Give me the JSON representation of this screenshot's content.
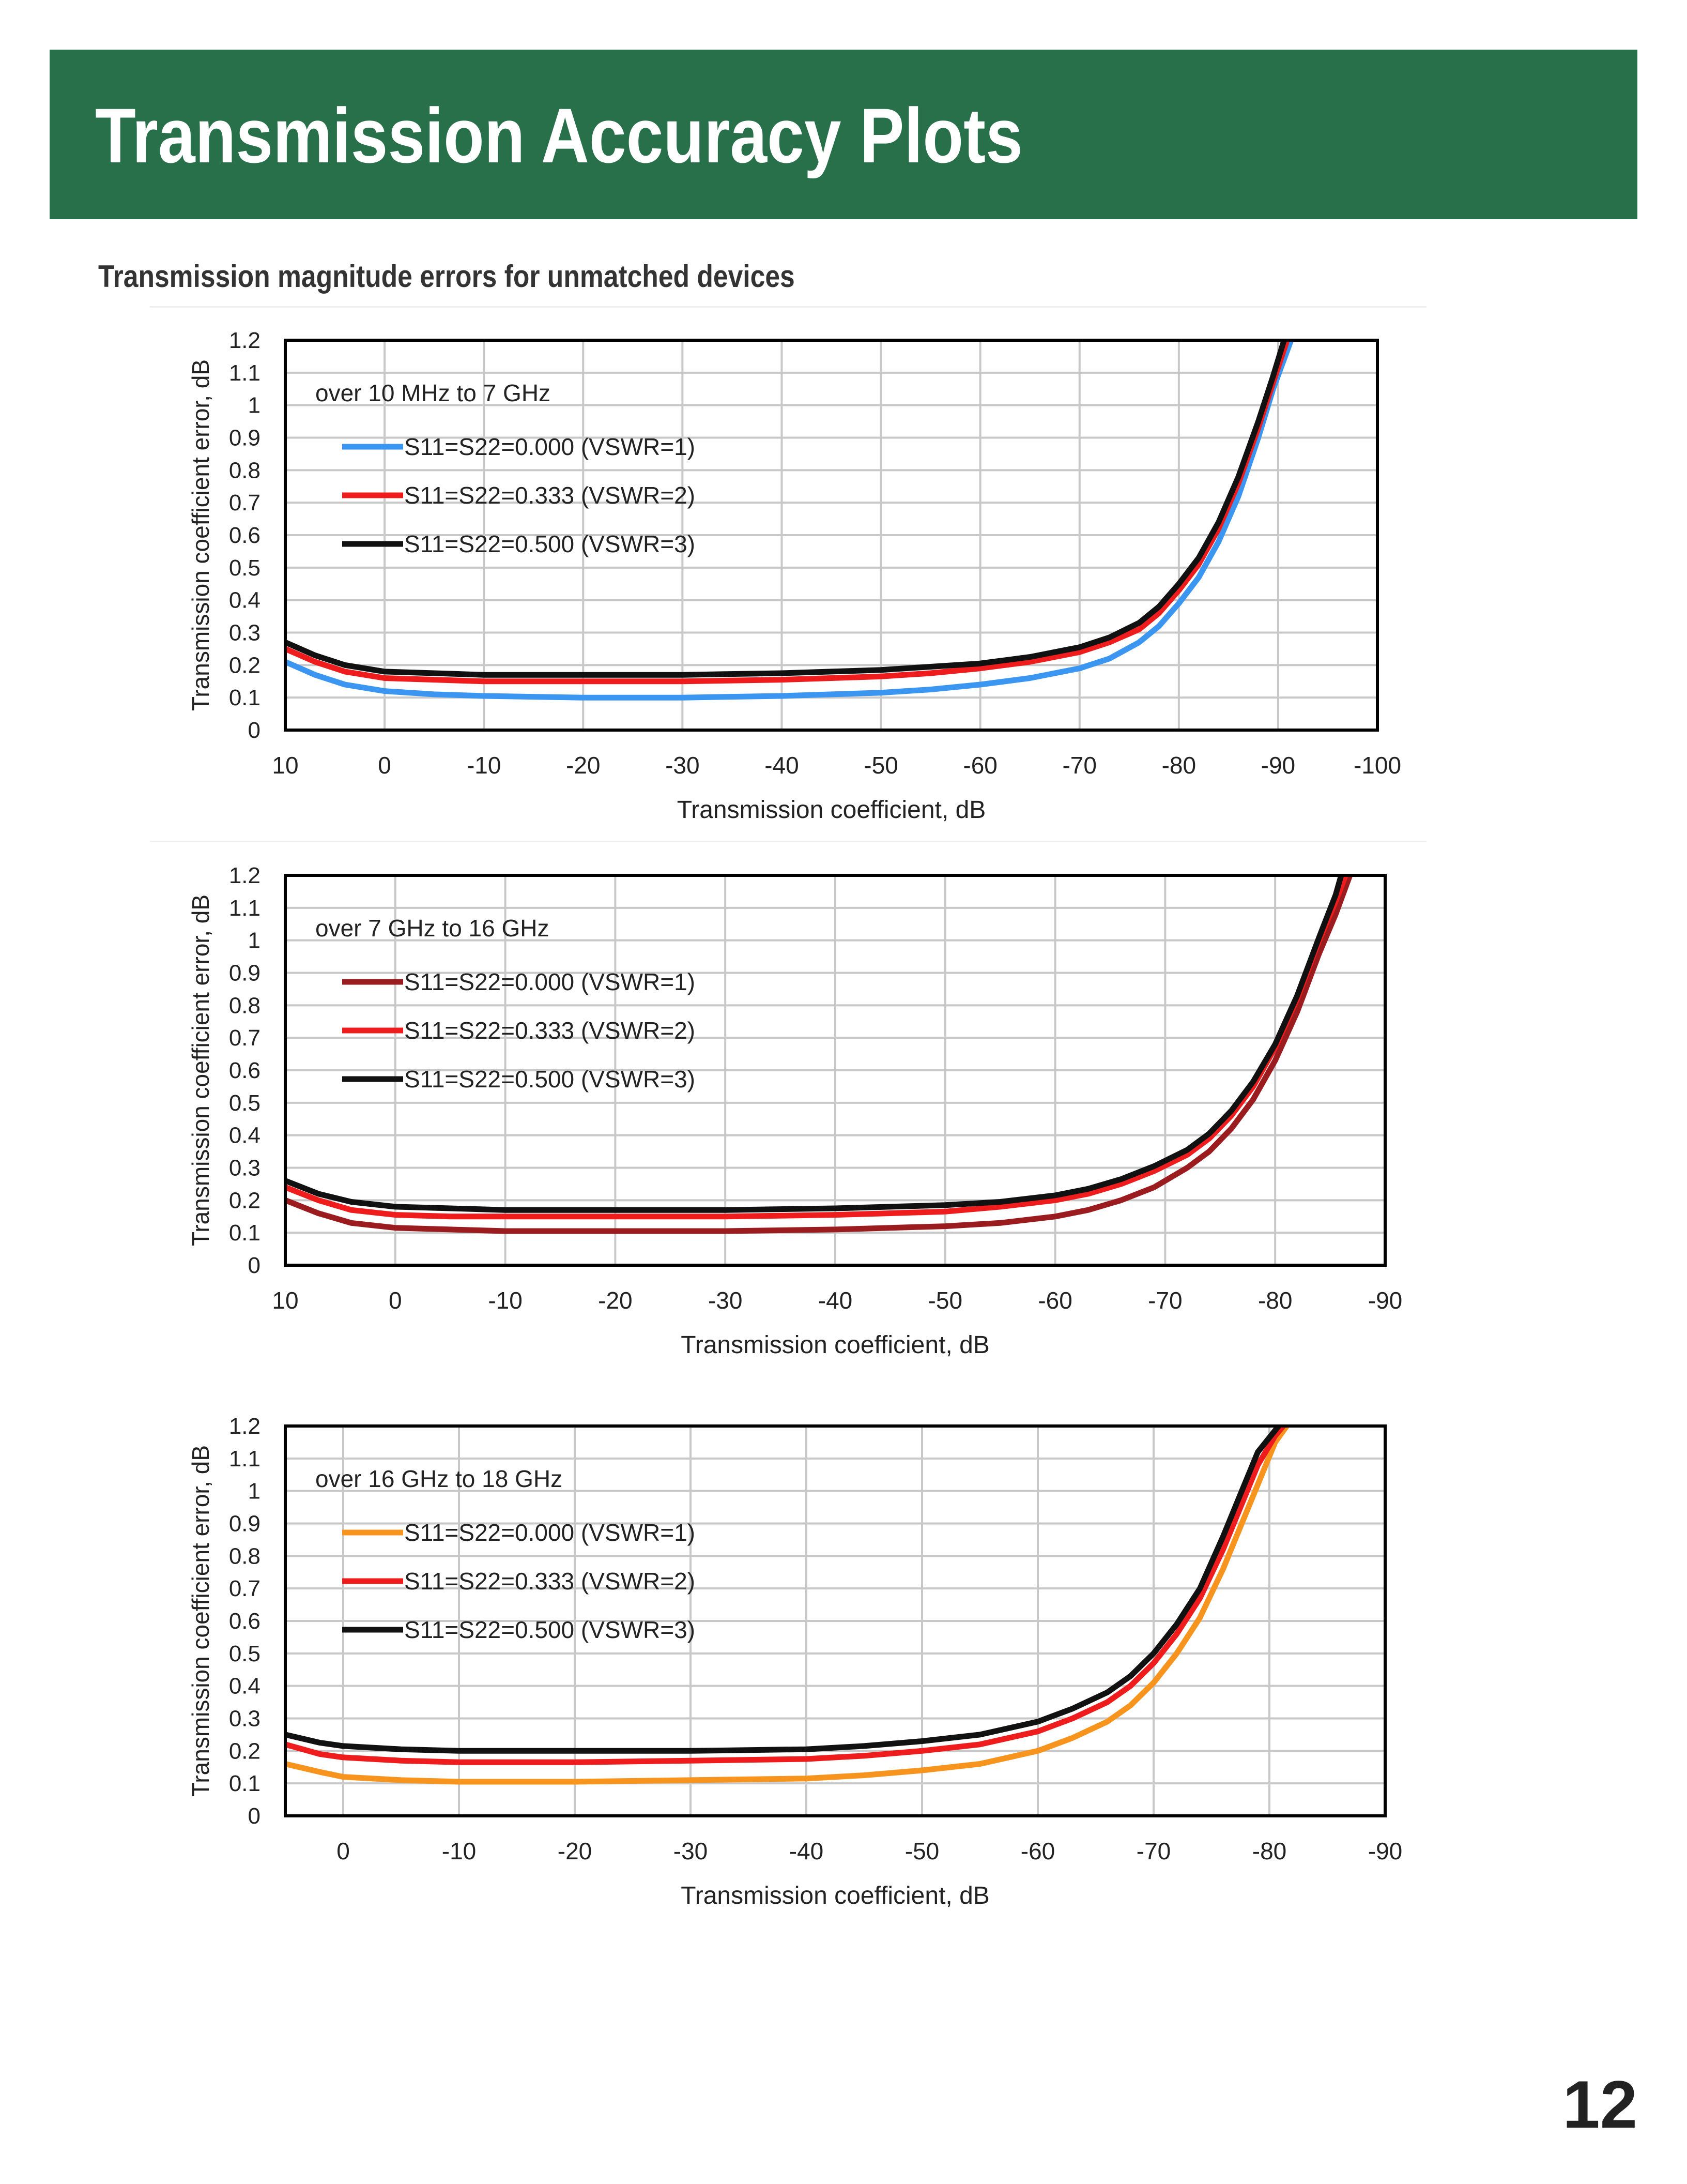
{
  "page": {
    "title": "Transmission Accuracy Plots",
    "subtitle": "Transmission magnitude errors for unmatched devices",
    "page_number": "12"
  },
  "chart_data": [
    {
      "type": "line",
      "annotation": "over 10 MHz to 7 GHz",
      "xlabel": "Transmission coefficient, dB",
      "ylabel": "Transmission coefficient error, dB",
      "xlim": [
        10,
        -100
      ],
      "ylim": [
        0,
        1.2
      ],
      "x_ticks": [
        10,
        0,
        -10,
        -20,
        -30,
        -40,
        -50,
        -60,
        -70,
        -80,
        -90,
        -100
      ],
      "x_tick_labels": [
        "10",
        "0",
        "-10",
        "-20",
        "-30",
        "-40",
        "-50",
        "-60",
        "-70",
        "-80",
        "-90",
        "-100"
      ],
      "y_ticks": [
        0,
        0.1,
        0.2,
        0.3,
        0.4,
        0.5,
        0.6,
        0.7,
        0.8,
        0.9,
        1,
        1.1,
        1.2
      ],
      "y_tick_labels": [
        "0",
        "0.1",
        "0.2",
        "0.3",
        "0.4",
        "0.5",
        "0.6",
        "0.7",
        "0.8",
        "0.9",
        "1",
        "1.1",
        "1.2"
      ],
      "grid": true,
      "legend_position": "top-left",
      "series": [
        {
          "name": "S11=S22=0.000 (VSWR=1)",
          "color": "#3a96f0",
          "x": [
            10,
            7,
            4,
            0,
            -5,
            -10,
            -20,
            -30,
            -40,
            -45,
            -50,
            -55,
            -60,
            -65,
            -70,
            -73,
            -76,
            -78,
            -80,
            -82,
            -84,
            -86,
            -88,
            -89.5,
            -91.3
          ],
          "y": [
            0.21,
            0.17,
            0.14,
            0.12,
            0.11,
            0.105,
            0.1,
            0.1,
            0.105,
            0.11,
            0.115,
            0.125,
            0.14,
            0.16,
            0.19,
            0.22,
            0.27,
            0.32,
            0.39,
            0.47,
            0.58,
            0.72,
            0.9,
            1.05,
            1.2
          ]
        },
        {
          "name": "S11=S22=0.333 (VSWR=2)",
          "color": "#ee1c1c",
          "x": [
            10,
            7,
            4,
            0,
            -5,
            -10,
            -20,
            -30,
            -40,
            -45,
            -50,
            -55,
            -60,
            -65,
            -70,
            -73,
            -76,
            -78,
            -80,
            -82,
            -84,
            -86,
            -88,
            -89.5,
            -90.9
          ],
          "y": [
            0.25,
            0.21,
            0.18,
            0.16,
            0.155,
            0.15,
            0.15,
            0.15,
            0.155,
            0.16,
            0.165,
            0.175,
            0.19,
            0.21,
            0.24,
            0.27,
            0.31,
            0.36,
            0.43,
            0.51,
            0.62,
            0.76,
            0.93,
            1.07,
            1.2
          ]
        },
        {
          "name": "S11=S22=0.500 (VSWR=3)",
          "color": "#111111",
          "x": [
            10,
            7,
            4,
            0,
            -5,
            -10,
            -20,
            -30,
            -40,
            -45,
            -50,
            -55,
            -60,
            -65,
            -70,
            -73,
            -76,
            -78,
            -80,
            -82,
            -84,
            -86,
            -88,
            -89.5,
            -90.6
          ],
          "y": [
            0.27,
            0.23,
            0.2,
            0.18,
            0.175,
            0.17,
            0.17,
            0.17,
            0.175,
            0.18,
            0.185,
            0.195,
            0.205,
            0.225,
            0.255,
            0.285,
            0.33,
            0.38,
            0.45,
            0.53,
            0.64,
            0.78,
            0.95,
            1.09,
            1.2
          ]
        }
      ]
    },
    {
      "type": "line",
      "annotation": "over 7 GHz to 16 GHz",
      "xlabel": "Transmission coefficient, dB",
      "ylabel": "Transmission coefficient error, dB",
      "xlim": [
        10,
        -90
      ],
      "ylim": [
        0,
        1.2
      ],
      "x_ticks": [
        10,
        0,
        -10,
        -20,
        -30,
        -40,
        -50,
        -60,
        -70,
        -80,
        -90
      ],
      "x_tick_labels": [
        "10",
        "0",
        "-10",
        "-20",
        "-30",
        "-40",
        "-50",
        "-60",
        "-70",
        "-80",
        "-90"
      ],
      "y_ticks": [
        0,
        0.1,
        0.2,
        0.3,
        0.4,
        0.5,
        0.6,
        0.7,
        0.8,
        0.9,
        1,
        1.1,
        1.2
      ],
      "y_tick_labels": [
        "0",
        "0.1",
        "0.2",
        "0.3",
        "0.4",
        "0.5",
        "0.6",
        "0.7",
        "0.8",
        "0.9",
        "1",
        "1.1",
        "1.2"
      ],
      "grid": true,
      "legend_position": "top-left",
      "series": [
        {
          "name": "S11=S22=0.000 (VSWR=1)",
          "color": "#9b1c1f",
          "x": [
            10,
            7,
            4,
            0,
            -5,
            -10,
            -20,
            -30,
            -40,
            -45,
            -50,
            -55,
            -60,
            -63,
            -66,
            -69,
            -72,
            -74,
            -76,
            -78,
            -80,
            -82,
            -84,
            -85.5,
            -86.8
          ],
          "y": [
            0.2,
            0.16,
            0.13,
            0.115,
            0.11,
            0.105,
            0.105,
            0.105,
            0.11,
            0.115,
            0.12,
            0.13,
            0.15,
            0.17,
            0.2,
            0.24,
            0.3,
            0.35,
            0.42,
            0.51,
            0.63,
            0.78,
            0.96,
            1.08,
            1.2
          ]
        },
        {
          "name": "S11=S22=0.333 (VSWR=2)",
          "color": "#ee1c1c",
          "x": [
            10,
            7,
            4,
            0,
            -5,
            -10,
            -20,
            -30,
            -40,
            -45,
            -50,
            -55,
            -60,
            -63,
            -66,
            -69,
            -72,
            -74,
            -76,
            -78,
            -80,
            -82,
            -84,
            -85.5,
            -86.4
          ],
          "y": [
            0.24,
            0.2,
            0.17,
            0.155,
            0.15,
            0.15,
            0.15,
            0.15,
            0.155,
            0.16,
            0.165,
            0.18,
            0.2,
            0.22,
            0.25,
            0.29,
            0.34,
            0.39,
            0.46,
            0.55,
            0.67,
            0.82,
            1.0,
            1.12,
            1.2
          ]
        },
        {
          "name": "S11=S22=0.500 (VSWR=3)",
          "color": "#111111",
          "x": [
            10,
            7,
            4,
            0,
            -5,
            -10,
            -20,
            -30,
            -40,
            -45,
            -50,
            -55,
            -60,
            -63,
            -66,
            -69,
            -72,
            -74,
            -76,
            -78,
            -80,
            -82,
            -84,
            -85.5,
            -86.0
          ],
          "y": [
            0.26,
            0.22,
            0.195,
            0.18,
            0.175,
            0.17,
            0.17,
            0.17,
            0.175,
            0.18,
            0.185,
            0.195,
            0.215,
            0.235,
            0.265,
            0.305,
            0.355,
            0.405,
            0.475,
            0.565,
            0.68,
            0.83,
            1.01,
            1.14,
            1.2
          ]
        }
      ]
    },
    {
      "type": "line",
      "annotation": "over 16 GHz to 18 GHz",
      "xlabel": "Transmission coefficient, dB",
      "ylabel": "Transmission coefficient error, dB",
      "xlim": [
        5,
        -90
      ],
      "ylim": [
        0,
        1.2
      ],
      "x_ticks": [
        0,
        -10,
        -20,
        -30,
        -40,
        -50,
        -60,
        -70,
        -80,
        -90
      ],
      "x_tick_labels": [
        "0",
        "-10",
        "-20",
        "-30",
        "-40",
        "-50",
        "-60",
        "-70",
        "-80",
        "-90"
      ],
      "y_ticks": [
        0,
        0.1,
        0.2,
        0.3,
        0.4,
        0.5,
        0.6,
        0.7,
        0.8,
        0.9,
        1,
        1.1,
        1.2
      ],
      "y_tick_labels": [
        "0",
        "0.1",
        "0.2",
        "0.3",
        "0.4",
        "0.5",
        "0.6",
        "0.7",
        "0.8",
        "0.9",
        "1",
        "1.1",
        "1.2"
      ],
      "grid": true,
      "legend_position": "top-left",
      "series": [
        {
          "name": "S11=S22=0.000 (VSWR=1)",
          "color": "#f7941d",
          "x": [
            5,
            2,
            0,
            -5,
            -10,
            -20,
            -30,
            -40,
            -45,
            -50,
            -55,
            -60,
            -63,
            -66,
            -68,
            -70,
            -72,
            -74,
            -76,
            -77.5,
            -79,
            -80.5,
            -81.5
          ],
          "y": [
            0.16,
            0.135,
            0.12,
            0.11,
            0.105,
            0.105,
            0.11,
            0.115,
            0.125,
            0.14,
            0.16,
            0.2,
            0.24,
            0.29,
            0.34,
            0.41,
            0.5,
            0.61,
            0.76,
            0.89,
            1.02,
            1.15,
            1.2
          ]
        },
        {
          "name": "S11=S22=0.333 (VSWR=2)",
          "color": "#ee1c1c",
          "x": [
            5,
            2,
            0,
            -5,
            -10,
            -20,
            -30,
            -40,
            -45,
            -50,
            -55,
            -60,
            -63,
            -66,
            -68,
            -70,
            -72,
            -74,
            -76,
            -77.5,
            -79,
            -80.5,
            -81.2
          ],
          "y": [
            0.22,
            0.19,
            0.18,
            0.17,
            0.165,
            0.165,
            0.17,
            0.175,
            0.185,
            0.2,
            0.22,
            0.26,
            0.3,
            0.35,
            0.4,
            0.47,
            0.56,
            0.67,
            0.82,
            0.95,
            1.08,
            1.17,
            1.2
          ]
        },
        {
          "name": "S11=S22=0.500 (VSWR=3)",
          "color": "#111111",
          "x": [
            5,
            2,
            0,
            -5,
            -10,
            -20,
            -30,
            -40,
            -45,
            -50,
            -55,
            -60,
            -63,
            -66,
            -68,
            -70,
            -72,
            -74,
            -76,
            -77.5,
            -79,
            -80.8
          ],
          "y": [
            0.25,
            0.225,
            0.215,
            0.205,
            0.2,
            0.2,
            0.2,
            0.205,
            0.215,
            0.23,
            0.25,
            0.29,
            0.33,
            0.38,
            0.43,
            0.5,
            0.59,
            0.7,
            0.86,
            0.99,
            1.12,
            1.2
          ]
        }
      ]
    }
  ]
}
